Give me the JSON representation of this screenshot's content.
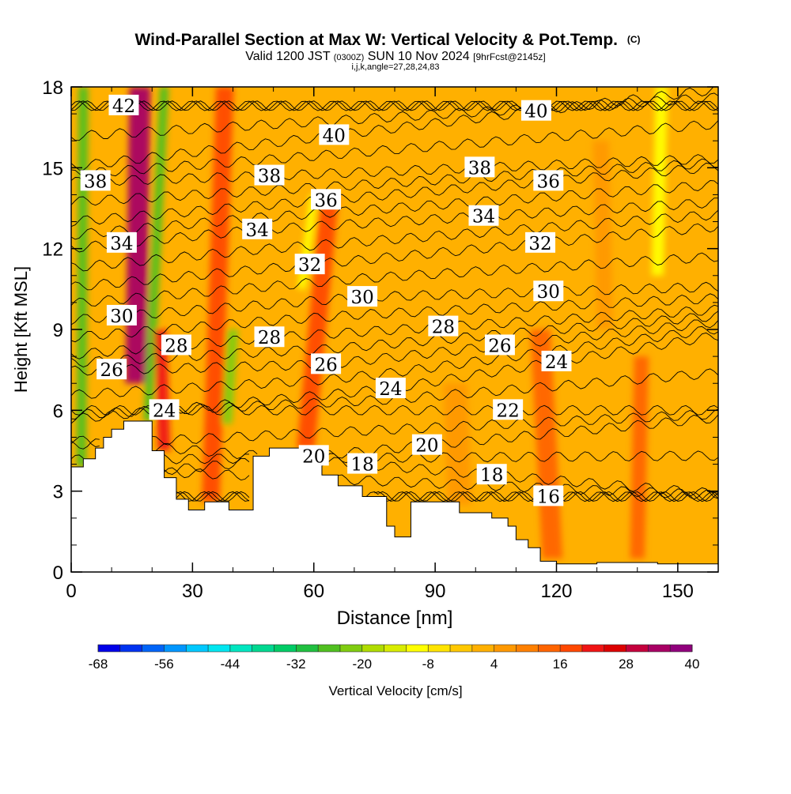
{
  "chart_data": {
    "type": "heatmap",
    "title": "Wind-Parallel Section at Max W: Vertical Velocity & Pot.Temp.",
    "title_mark": "(C)",
    "subtitle_parts": [
      "Valid 1200 JST",
      "(0300Z)",
      "SUN 10 Nov 2024",
      "[9hrFcst@2145z]"
    ],
    "subtitle2": "i,j,k,angle=27,28,24,83",
    "xlabel": "Distance [nm]",
    "ylabel": "Height [Kft MSL]",
    "xlim": [
      0,
      160
    ],
    "ylim": [
      0,
      18
    ],
    "x_ticks": [
      0,
      30,
      60,
      90,
      120,
      150
    ],
    "y_ticks": [
      0,
      3,
      6,
      9,
      12,
      15,
      18
    ],
    "grid": false,
    "colorbar": {
      "label": "Vertical Velocity [cm/s]",
      "tick_labels": [
        -68,
        -56,
        -44,
        -32,
        -20,
        -8,
        4,
        16,
        28,
        40
      ],
      "min": -68,
      "max": 40,
      "step": 4,
      "colors": [
        "#0000e8",
        "#0032f0",
        "#0064f8",
        "#0096ff",
        "#00c8ff",
        "#00e6f0",
        "#00e6c0",
        "#00d890",
        "#00cc66",
        "#20c040",
        "#50c020",
        "#80cc10",
        "#b0dc00",
        "#d8ec00",
        "#ffff00",
        "#ffe400",
        "#ffc800",
        "#ffb000",
        "#ff9800",
        "#ff8000",
        "#ff6400",
        "#ff4800",
        "#f01414",
        "#dc0000",
        "#c4003c",
        "#a80064",
        "#90007c"
      ]
    },
    "terrain_profile": {
      "x": [
        0,
        3,
        3,
        6,
        6,
        8,
        8,
        10,
        10,
        13,
        13,
        20,
        20,
        23,
        23,
        26,
        26,
        29,
        29,
        33,
        33,
        39,
        39,
        45,
        45,
        49,
        49,
        55,
        55,
        62,
        62,
        66,
        66,
        72,
        72,
        78,
        78,
        80,
        80,
        84,
        84,
        90,
        90,
        96,
        96,
        104,
        104,
        108,
        108,
        110,
        110,
        113,
        113,
        116,
        116,
        120,
        120,
        124,
        124,
        130,
        130,
        145,
        145,
        152,
        152,
        160
      ],
      "height_kft": [
        3.9,
        3.9,
        4.2,
        4.2,
        4.6,
        4.6,
        5.0,
        5.0,
        5.3,
        5.3,
        5.6,
        5.6,
        4.5,
        4.5,
        3.5,
        3.5,
        2.7,
        2.7,
        2.3,
        2.3,
        2.6,
        2.6,
        2.3,
        2.3,
        4.3,
        4.3,
        4.6,
        4.6,
        4.6,
        4.6,
        3.6,
        3.6,
        3.2,
        3.2,
        2.8,
        2.8,
        1.7,
        1.7,
        1.3,
        1.3,
        2.6,
        2.6,
        2.6,
        2.6,
        2.2,
        2.2,
        2.0,
        2.0,
        1.7,
        1.7,
        1.2,
        1.2,
        0.9,
        0.9,
        0.4,
        0.4,
        0.3,
        0.3,
        0.3,
        0.3,
        0.35,
        0.35,
        0.3,
        0.3,
        0.3,
        0.3
      ]
    },
    "vertical_velocity_plumes": [
      {
        "x": 2.5,
        "x_top": 3.0,
        "value": -28,
        "half_width_nm": 1.2,
        "bottom_kft": 3.9,
        "top_kft": 18
      },
      {
        "x": 16.0,
        "x_top": 17.0,
        "value": 32,
        "half_width_nm": 2.6,
        "bottom_kft": 7.0,
        "top_kft": 18
      },
      {
        "x": 19.0,
        "x_top": 23.0,
        "value": -26,
        "half_width_nm": 1.1,
        "bottom_kft": 5.6,
        "top_kft": 18
      },
      {
        "x": 23.0,
        "x_top": 22.0,
        "value": 20,
        "half_width_nm": 1.5,
        "bottom_kft": 4.5,
        "top_kft": 9.0
      },
      {
        "x": 34.5,
        "x_top": 38.0,
        "value": 16,
        "half_width_nm": 2.2,
        "bottom_kft": 2.6,
        "top_kft": 18
      },
      {
        "x": 38.5,
        "x_top": 40.0,
        "value": -22,
        "half_width_nm": 1.3,
        "bottom_kft": 5.5,
        "top_kft": 9.0
      },
      {
        "x": 58.0,
        "x_top": 64.0,
        "value": 18,
        "half_width_nm": 2.2,
        "bottom_kft": 4.6,
        "top_kft": 14.0
      },
      {
        "x": 57.0,
        "x_top": 60.0,
        "value": -10,
        "half_width_nm": 1.0,
        "bottom_kft": 10.5,
        "top_kft": 14.0
      },
      {
        "x": 119.0,
        "x_top": 116.0,
        "value": 12,
        "half_width_nm": 2.5,
        "bottom_kft": 0.5,
        "top_kft": 9.0
      },
      {
        "x": 140.0,
        "x_top": 141.0,
        "value": 12,
        "half_width_nm": 1.8,
        "bottom_kft": 0.5,
        "top_kft": 8.0
      },
      {
        "x": 132.0,
        "x_top": 131.0,
        "value": 4,
        "half_width_nm": 2.0,
        "bottom_kft": 9.0,
        "top_kft": 16.0
      },
      {
        "x": 145.0,
        "x_top": 146.0,
        "value": -10,
        "half_width_nm": 1.5,
        "bottom_kft": 11.0,
        "top_kft": 18.0
      },
      {
        "x": 96.0,
        "x_top": 95.0,
        "value": 6,
        "half_width_nm": 3.0,
        "bottom_kft": 2.5,
        "top_kft": 7.0
      }
    ],
    "background_velocity": 0,
    "potential_temperature": {
      "contour_interval": 1,
      "label_units": "C",
      "levels": [
        {
          "value": 42,
          "label_x": 13.0,
          "height_kft": 17.3
        },
        {
          "value": 40,
          "label_x": 65.0,
          "height_kft": 16.2
        },
        {
          "value": 40,
          "label_x": 115.0,
          "height_kft": 17.1
        },
        {
          "value": 38,
          "label_x": 6.0,
          "height_kft": 14.5
        },
        {
          "value": 38,
          "label_x": 49.0,
          "height_kft": 14.7
        },
        {
          "value": 38,
          "label_x": 101.0,
          "height_kft": 15.0
        },
        {
          "value": 36,
          "label_x": 63.0,
          "height_kft": 13.8
        },
        {
          "value": 36,
          "label_x": 118.0,
          "height_kft": 14.5
        },
        {
          "value": 34,
          "label_x": 12.5,
          "height_kft": 12.2
        },
        {
          "value": 34,
          "label_x": 46.0,
          "height_kft": 12.7
        },
        {
          "value": 34,
          "label_x": 102.0,
          "height_kft": 13.2
        },
        {
          "value": 32,
          "label_x": 59.0,
          "height_kft": 11.4
        },
        {
          "value": 32,
          "label_x": 116.0,
          "height_kft": 12.2
        },
        {
          "value": 30,
          "label_x": 12.5,
          "height_kft": 9.5
        },
        {
          "value": 30,
          "label_x": 72.0,
          "height_kft": 10.2
        },
        {
          "value": 30,
          "label_x": 118.0,
          "height_kft": 10.4
        },
        {
          "value": 28,
          "label_x": 26.0,
          "height_kft": 8.4
        },
        {
          "value": 28,
          "label_x": 49.0,
          "height_kft": 8.7
        },
        {
          "value": 28,
          "label_x": 92.0,
          "height_kft": 9.1
        },
        {
          "value": 26,
          "label_x": 10.0,
          "height_kft": 7.5
        },
        {
          "value": 26,
          "label_x": 63.0,
          "height_kft": 7.7
        },
        {
          "value": 26,
          "label_x": 106.0,
          "height_kft": 8.4
        },
        {
          "value": 24,
          "label_x": 23.0,
          "height_kft": 6.0
        },
        {
          "value": 24,
          "label_x": 79.0,
          "height_kft": 6.8
        },
        {
          "value": 24,
          "label_x": 120.0,
          "height_kft": 7.8
        },
        {
          "value": 22,
          "label_x": 108.0,
          "height_kft": 6.0
        },
        {
          "value": 20,
          "label_x": 60.0,
          "height_kft": 4.3
        },
        {
          "value": 20,
          "label_x": 88.0,
          "height_kft": 4.7
        },
        {
          "value": 18,
          "label_x": 72.0,
          "height_kft": 4.0
        },
        {
          "value": 18,
          "label_x": 104.0,
          "height_kft": 3.6
        },
        {
          "value": 16,
          "label_x": 118.0,
          "height_kft": 2.8
        }
      ]
    }
  }
}
